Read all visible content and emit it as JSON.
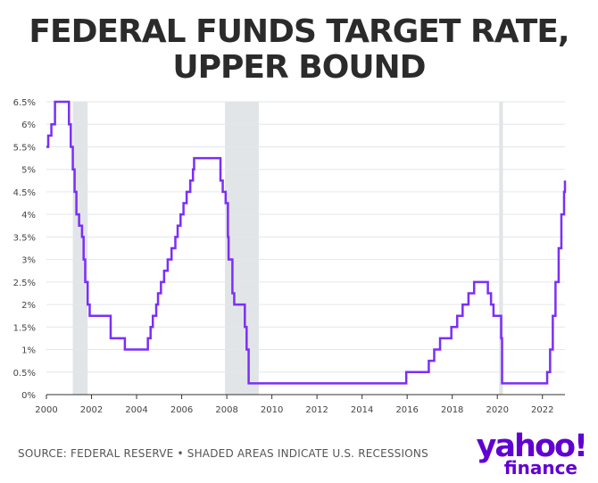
{
  "header": {
    "title_line1": "FEDERAL FUNDS TARGET RATE,",
    "title_line2": "UPPER BOUND"
  },
  "footer": {
    "source": "SOURCE: FEDERAL RESERVE • SHADED AREAS INDICATE U.S. RECESSIONS"
  },
  "logo": {
    "main": "yahoo!",
    "sub": "finance"
  },
  "colors": {
    "line": "#7b2ff7",
    "recession": "#e2e5e8",
    "grid": "#e3e6ea",
    "axis": "#333333"
  },
  "chart_data": {
    "type": "line",
    "step": true,
    "title": "FEDERAL FUNDS TARGET RATE, UPPER BOUND",
    "xlabel": "",
    "ylabel": "",
    "xlim": [
      2000,
      2023
    ],
    "ylim": [
      0,
      6.5
    ],
    "grid": true,
    "y_ticks": [
      0,
      0.5,
      1,
      1.5,
      2,
      2.5,
      3,
      3.5,
      4,
      4.5,
      5,
      5.5,
      6,
      6.5
    ],
    "y_tick_labels": [
      "0%",
      "0.5%",
      "1%",
      "1.5%",
      "2%",
      "2.5%",
      "3%",
      "3.5%",
      "4%",
      "4.5%",
      "5%",
      "5.5%",
      "6%",
      "6.5%"
    ],
    "x_ticks": [
      2000,
      2002,
      2004,
      2006,
      2008,
      2010,
      2012,
      2014,
      2016,
      2018,
      2020,
      2022
    ],
    "x_tick_labels": [
      "2000",
      "2002",
      "2004",
      "2006",
      "2008",
      "2010",
      "2012",
      "2014",
      "2016",
      "2018",
      "2020",
      "2022"
    ],
    "recessions": [
      [
        2001.17,
        2001.83
      ],
      [
        2007.92,
        2009.42
      ],
      [
        2020.08,
        2020.25
      ]
    ],
    "series": [
      {
        "name": "Federal funds target rate, upper bound",
        "points": [
          [
            2000.0,
            5.5
          ],
          [
            2000.08,
            5.75
          ],
          [
            2000.22,
            6.0
          ],
          [
            2000.38,
            6.5
          ],
          [
            2001.0,
            6.0
          ],
          [
            2001.08,
            5.5
          ],
          [
            2001.17,
            5.0
          ],
          [
            2001.25,
            4.5
          ],
          [
            2001.33,
            4.0
          ],
          [
            2001.45,
            3.75
          ],
          [
            2001.58,
            3.5
          ],
          [
            2001.65,
            3.0
          ],
          [
            2001.72,
            2.5
          ],
          [
            2001.83,
            2.0
          ],
          [
            2001.92,
            1.75
          ],
          [
            2002.85,
            1.25
          ],
          [
            2003.48,
            1.0
          ],
          [
            2004.5,
            1.25
          ],
          [
            2004.62,
            1.5
          ],
          [
            2004.72,
            1.75
          ],
          [
            2004.87,
            2.0
          ],
          [
            2004.95,
            2.25
          ],
          [
            2005.08,
            2.5
          ],
          [
            2005.22,
            2.75
          ],
          [
            2005.38,
            3.0
          ],
          [
            2005.55,
            3.25
          ],
          [
            2005.72,
            3.5
          ],
          [
            2005.82,
            3.75
          ],
          [
            2005.95,
            4.0
          ],
          [
            2006.08,
            4.25
          ],
          [
            2006.22,
            4.5
          ],
          [
            2006.38,
            4.75
          ],
          [
            2006.5,
            5.0
          ],
          [
            2006.55,
            5.25
          ],
          [
            2007.72,
            4.75
          ],
          [
            2007.82,
            4.5
          ],
          [
            2007.95,
            4.25
          ],
          [
            2008.05,
            3.5
          ],
          [
            2008.08,
            3.0
          ],
          [
            2008.25,
            2.25
          ],
          [
            2008.33,
            2.0
          ],
          [
            2008.8,
            1.5
          ],
          [
            2008.88,
            1.0
          ],
          [
            2008.97,
            0.25
          ],
          [
            2015.96,
            0.5
          ],
          [
            2016.96,
            0.75
          ],
          [
            2017.2,
            1.0
          ],
          [
            2017.46,
            1.25
          ],
          [
            2017.96,
            1.5
          ],
          [
            2018.22,
            1.75
          ],
          [
            2018.46,
            2.0
          ],
          [
            2018.72,
            2.25
          ],
          [
            2018.97,
            2.5
          ],
          [
            2019.58,
            2.25
          ],
          [
            2019.72,
            2.0
          ],
          [
            2019.83,
            1.75
          ],
          [
            2020.17,
            1.25
          ],
          [
            2020.21,
            0.25
          ],
          [
            2022.21,
            0.5
          ],
          [
            2022.34,
            1.0
          ],
          [
            2022.46,
            1.75
          ],
          [
            2022.58,
            2.5
          ],
          [
            2022.72,
            3.25
          ],
          [
            2022.84,
            4.0
          ],
          [
            2022.96,
            4.5
          ],
          [
            2023.0,
            4.75
          ]
        ]
      }
    ]
  }
}
